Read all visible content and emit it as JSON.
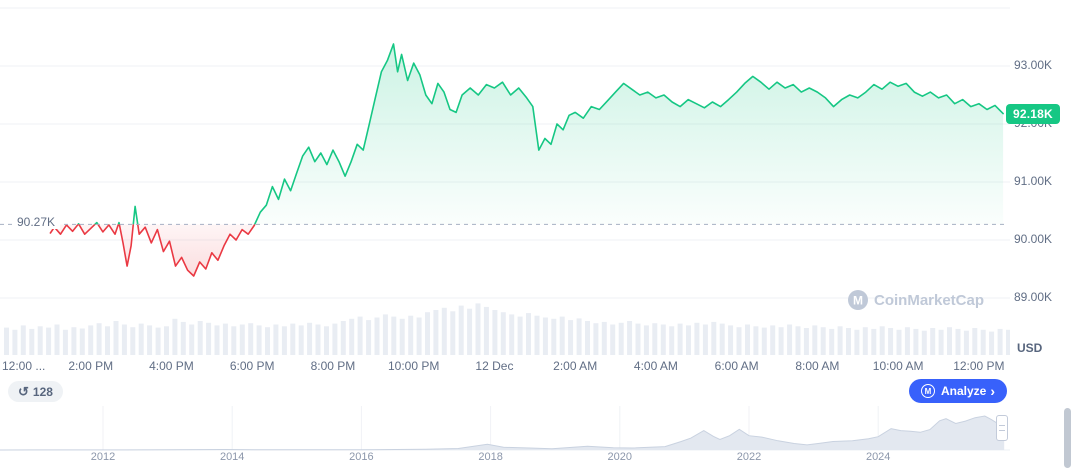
{
  "watermark": {
    "text": "CoinMarketCap",
    "icon_letter": "M"
  },
  "toolbar": {
    "history_count": "128",
    "history_icon": "↺",
    "analyze_label": "Analyze",
    "analyze_chevron": "›",
    "analyze_icon_letter": "M",
    "analyze_color": "#3861fb"
  },
  "chart_data": {
    "type": "line",
    "description": "Intraday price chart with baseline comparison, volume bars and all-time range navigator",
    "unit": "K USD",
    "current_price": {
      "value": 92.18,
      "label": "92.18K"
    },
    "baseline": {
      "value": 90.27,
      "label": "90.27K"
    },
    "y_axis": {
      "unit_label": "USD",
      "ticks": [
        {
          "value": 93,
          "label": "93.00K"
        },
        {
          "value": 92,
          "label": "92.00K"
        },
        {
          "value": 91,
          "label": "91.00K"
        },
        {
          "value": 90,
          "label": "90.00K"
        },
        {
          "value": 89,
          "label": "89.00K"
        }
      ],
      "extra_gridlines": [
        94
      ],
      "range": [
        88.6,
        94.0
      ]
    },
    "x_axis": {
      "range_hours": [
        0,
        24.6
      ],
      "ticks": [
        {
          "t": 0,
          "label": "12:00 ..."
        },
        {
          "t": 2,
          "label": "2:00 PM"
        },
        {
          "t": 4,
          "label": "4:00 PM"
        },
        {
          "t": 6,
          "label": "6:00 PM"
        },
        {
          "t": 8,
          "label": "8:00 PM"
        },
        {
          "t": 10,
          "label": "10:00 PM"
        },
        {
          "t": 12,
          "label": "12 Dec"
        },
        {
          "t": 14,
          "label": "2:00 AM"
        },
        {
          "t": 16,
          "label": "4:00 AM"
        },
        {
          "t": 18,
          "label": "6:00 AM"
        },
        {
          "t": 20,
          "label": "8:00 AM"
        },
        {
          "t": 22,
          "label": "10:00 AM"
        },
        {
          "t": 24,
          "label": "12:00 PM"
        }
      ]
    },
    "price_points": [
      [
        1,
        90.12
      ],
      [
        1.1,
        90.22
      ],
      [
        1.25,
        90.1
      ],
      [
        1.4,
        90.26
      ],
      [
        1.55,
        90.15
      ],
      [
        1.7,
        90.28
      ],
      [
        1.85,
        90.1
      ],
      [
        2,
        90.2
      ],
      [
        2.15,
        90.3
      ],
      [
        2.3,
        90.14
      ],
      [
        2.45,
        90.26
      ],
      [
        2.6,
        90.1
      ],
      [
        2.7,
        90.3
      ],
      [
        2.8,
        89.95
      ],
      [
        2.9,
        89.55
      ],
      [
        3,
        89.9
      ],
      [
        3.1,
        90.58
      ],
      [
        3.2,
        90.1
      ],
      [
        3.35,
        90.22
      ],
      [
        3.5,
        89.95
      ],
      [
        3.65,
        90.18
      ],
      [
        3.8,
        89.8
      ],
      [
        3.95,
        89.98
      ],
      [
        4.1,
        89.55
      ],
      [
        4.25,
        89.7
      ],
      [
        4.4,
        89.48
      ],
      [
        4.55,
        89.38
      ],
      [
        4.7,
        89.62
      ],
      [
        4.85,
        89.5
      ],
      [
        5,
        89.78
      ],
      [
        5.15,
        89.65
      ],
      [
        5.3,
        89.9
      ],
      [
        5.45,
        90.1
      ],
      [
        5.6,
        90
      ],
      [
        5.75,
        90.18
      ],
      [
        5.9,
        90.1
      ],
      [
        6.05,
        90.25
      ],
      [
        6.2,
        90.48
      ],
      [
        6.35,
        90.6
      ],
      [
        6.5,
        90.92
      ],
      [
        6.65,
        90.7
      ],
      [
        6.8,
        91.05
      ],
      [
        6.95,
        90.85
      ],
      [
        7.1,
        91.15
      ],
      [
        7.25,
        91.45
      ],
      [
        7.4,
        91.6
      ],
      [
        7.55,
        91.35
      ],
      [
        7.7,
        91.5
      ],
      [
        7.85,
        91.3
      ],
      [
        8,
        91.55
      ],
      [
        8.15,
        91.35
      ],
      [
        8.3,
        91.1
      ],
      [
        8.45,
        91.35
      ],
      [
        8.6,
        91.65
      ],
      [
        8.75,
        91.55
      ],
      [
        8.9,
        92
      ],
      [
        9.05,
        92.45
      ],
      [
        9.2,
        92.9
      ],
      [
        9.35,
        93.1
      ],
      [
        9.5,
        93.38
      ],
      [
        9.6,
        92.9
      ],
      [
        9.7,
        93.2
      ],
      [
        9.85,
        92.75
      ],
      [
        10,
        93.05
      ],
      [
        10.15,
        92.85
      ],
      [
        10.3,
        92.5
      ],
      [
        10.45,
        92.35
      ],
      [
        10.6,
        92.7
      ],
      [
        10.75,
        92.55
      ],
      [
        10.9,
        92.25
      ],
      [
        11.05,
        92.2
      ],
      [
        11.2,
        92.5
      ],
      [
        11.4,
        92.62
      ],
      [
        11.6,
        92.5
      ],
      [
        11.8,
        92.68
      ],
      [
        12,
        92.62
      ],
      [
        12.2,
        92.72
      ],
      [
        12.4,
        92.5
      ],
      [
        12.6,
        92.62
      ],
      [
        12.8,
        92.45
      ],
      [
        12.95,
        92.3
      ],
      [
        13.1,
        91.55
      ],
      [
        13.25,
        91.75
      ],
      [
        13.4,
        91.65
      ],
      [
        13.55,
        92
      ],
      [
        13.7,
        91.9
      ],
      [
        13.85,
        92.15
      ],
      [
        14,
        92.2
      ],
      [
        14.2,
        92.1
      ],
      [
        14.4,
        92.3
      ],
      [
        14.6,
        92.25
      ],
      [
        14.8,
        92.4
      ],
      [
        15,
        92.55
      ],
      [
        15.2,
        92.7
      ],
      [
        15.4,
        92.6
      ],
      [
        15.6,
        92.5
      ],
      [
        15.8,
        92.55
      ],
      [
        16,
        92.45
      ],
      [
        16.2,
        92.5
      ],
      [
        16.4,
        92.38
      ],
      [
        16.6,
        92.3
      ],
      [
        16.8,
        92.42
      ],
      [
        17,
        92.35
      ],
      [
        17.2,
        92.28
      ],
      [
        17.4,
        92.38
      ],
      [
        17.6,
        92.3
      ],
      [
        17.8,
        92.42
      ],
      [
        18,
        92.55
      ],
      [
        18.2,
        92.7
      ],
      [
        18.4,
        92.82
      ],
      [
        18.6,
        92.72
      ],
      [
        18.8,
        92.6
      ],
      [
        19,
        92.72
      ],
      [
        19.2,
        92.62
      ],
      [
        19.4,
        92.68
      ],
      [
        19.6,
        92.55
      ],
      [
        19.8,
        92.62
      ],
      [
        20,
        92.55
      ],
      [
        20.2,
        92.45
      ],
      [
        20.4,
        92.3
      ],
      [
        20.6,
        92.42
      ],
      [
        20.8,
        92.5
      ],
      [
        21,
        92.45
      ],
      [
        21.2,
        92.55
      ],
      [
        21.4,
        92.68
      ],
      [
        21.6,
        92.6
      ],
      [
        21.8,
        92.72
      ],
      [
        22,
        92.65
      ],
      [
        22.2,
        92.7
      ],
      [
        22.4,
        92.55
      ],
      [
        22.6,
        92.48
      ],
      [
        22.8,
        92.55
      ],
      [
        23,
        92.45
      ],
      [
        23.2,
        92.5
      ],
      [
        23.4,
        92.35
      ],
      [
        23.6,
        92.42
      ],
      [
        23.8,
        92.3
      ],
      [
        24,
        92.35
      ],
      [
        24.2,
        92.25
      ],
      [
        24.4,
        92.32
      ],
      [
        24.6,
        92.18
      ]
    ],
    "volume": [
      0.35,
      0.3,
      0.4,
      0.32,
      0.38,
      0.35,
      0.42,
      0.3,
      0.36,
      0.33,
      0.4,
      0.45,
      0.38,
      0.5,
      0.42,
      0.36,
      0.44,
      0.4,
      0.35,
      0.38,
      0.55,
      0.48,
      0.42,
      0.5,
      0.46,
      0.4,
      0.44,
      0.38,
      0.42,
      0.45,
      0.4,
      0.36,
      0.42,
      0.38,
      0.44,
      0.4,
      0.46,
      0.42,
      0.38,
      0.44,
      0.5,
      0.55,
      0.6,
      0.52,
      0.58,
      0.65,
      0.6,
      0.55,
      0.62,
      0.58,
      0.7,
      0.75,
      0.8,
      0.72,
      0.85,
      0.78,
      0.9,
      0.82,
      0.75,
      0.7,
      0.65,
      0.6,
      0.68,
      0.62,
      0.58,
      0.55,
      0.6,
      0.52,
      0.56,
      0.5,
      0.45,
      0.48,
      0.42,
      0.46,
      0.5,
      0.44,
      0.4,
      0.45,
      0.42,
      0.38,
      0.44,
      0.4,
      0.46,
      0.42,
      0.48,
      0.44,
      0.4,
      0.36,
      0.42,
      0.38,
      0.35,
      0.4,
      0.36,
      0.42,
      0.38,
      0.34,
      0.4,
      0.36,
      0.32,
      0.38,
      0.34,
      0.3,
      0.36,
      0.32,
      0.38,
      0.34,
      0.3,
      0.36,
      0.32,
      0.28,
      0.34,
      0.3,
      0.36,
      0.32,
      0.28,
      0.34,
      0.3,
      0.26,
      0.32,
      0.3
    ],
    "navigator": {
      "year_ticks": [
        2012,
        2014,
        2016,
        2018,
        2020,
        2022,
        2024
      ],
      "points": [
        [
          2010.4,
          0
        ],
        [
          2011,
          0.004
        ],
        [
          2012,
          0.003
        ],
        [
          2013,
          0.01
        ],
        [
          2013.9,
          0.014
        ],
        [
          2014.5,
          0.007
        ],
        [
          2015,
          0.005
        ],
        [
          2016,
          0.009
        ],
        [
          2017,
          0.02
        ],
        [
          2017.5,
          0.045
        ],
        [
          2017.95,
          0.17
        ],
        [
          2018.2,
          0.08
        ],
        [
          2018.6,
          0.06
        ],
        [
          2018.95,
          0.035
        ],
        [
          2019.5,
          0.11
        ],
        [
          2019.9,
          0.065
        ],
        [
          2020.2,
          0.06
        ],
        [
          2020.7,
          0.1
        ],
        [
          2020.95,
          0.25
        ],
        [
          2021.1,
          0.35
        ],
        [
          2021.3,
          0.57
        ],
        [
          2021.45,
          0.4
        ],
        [
          2021.55,
          0.31
        ],
        [
          2021.7,
          0.42
        ],
        [
          2021.85,
          0.61
        ],
        [
          2022,
          0.42
        ],
        [
          2022.2,
          0.38
        ],
        [
          2022.45,
          0.27
        ],
        [
          2022.7,
          0.19
        ],
        [
          2022.9,
          0.15
        ],
        [
          2023.1,
          0.2
        ],
        [
          2023.3,
          0.25
        ],
        [
          2023.6,
          0.27
        ],
        [
          2023.85,
          0.33
        ],
        [
          2024,
          0.39
        ],
        [
          2024.2,
          0.63
        ],
        [
          2024.35,
          0.57
        ],
        [
          2024.5,
          0.55
        ],
        [
          2024.65,
          0.52
        ],
        [
          2024.8,
          0.6
        ],
        [
          2024.95,
          0.86
        ],
        [
          2025.05,
          0.92
        ],
        [
          2025.2,
          0.78
        ],
        [
          2025.35,
          0.85
        ],
        [
          2025.5,
          0.95
        ],
        [
          2025.65,
          1
        ],
        [
          2025.75,
          0.9
        ],
        [
          2025.85,
          0.78
        ],
        [
          2025.95,
          0.82
        ]
      ]
    },
    "colors": {
      "up": "#16c784",
      "down": "#ea3943",
      "grid": "#eff2f5",
      "axis_text": "#616e85",
      "volume_bar": "#e9edf3",
      "baseline_line": "#a6b0c3",
      "badge_bg": "#16c784",
      "nav_fill": "#e3e8f0",
      "nav_line": "#c9d2e0",
      "watermark": "#c0c9d8"
    }
  }
}
